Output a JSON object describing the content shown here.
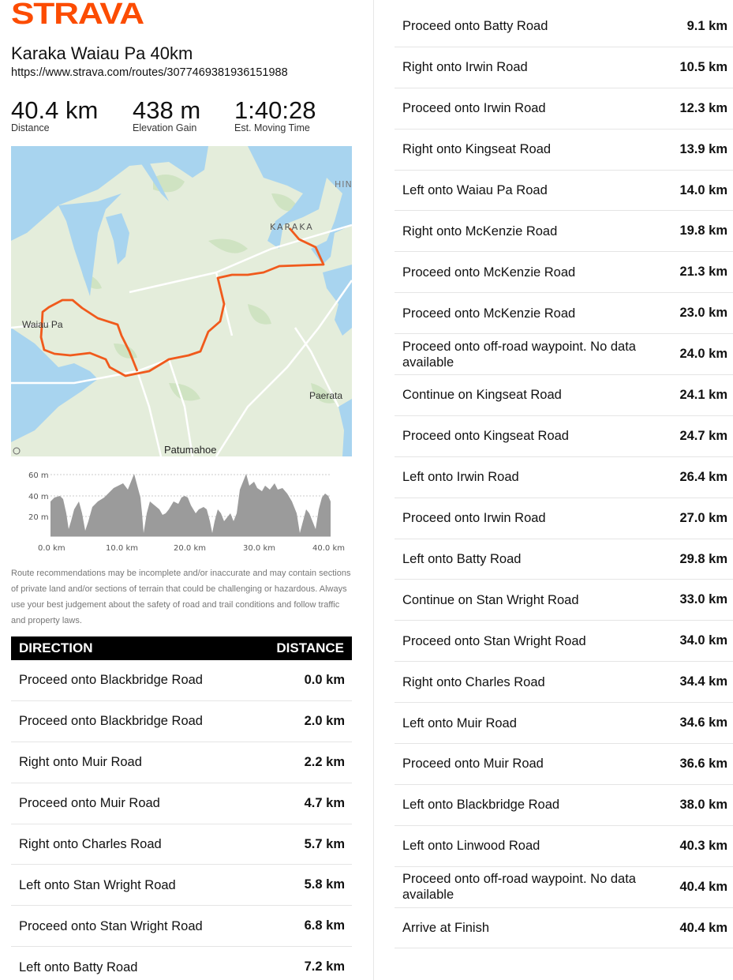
{
  "brand": "STRAVA",
  "route": {
    "title": "Karaka Waiau Pa 40km",
    "url": "https://www.strava.com/routes/3077469381936151988"
  },
  "stats": [
    {
      "value": "40.4 km",
      "label": "Distance"
    },
    {
      "value": "438 m",
      "label": "Elevation Gain"
    },
    {
      "value": "1:40:28",
      "label": "Est. Moving Time"
    }
  ],
  "map": {
    "labels": {
      "karaka": "KARAKA",
      "waiau": "Waiau Pa",
      "paerata": "Paerata",
      "patumahoe": "Patumahoe",
      "hin": "HIN"
    },
    "colors": {
      "water": "#a8d4ef",
      "land": "#e4eddb",
      "route": "#f05a1c"
    }
  },
  "elevation": {
    "y_ticks": [
      "60 m",
      "40 m",
      "20 m"
    ],
    "x_ticks": [
      "0.0 km",
      "10.0 km",
      "20.0 km",
      "30.0 km",
      "40.0 km"
    ]
  },
  "disclaimer": "Route recommendations may be incomplete and/or inaccurate and may contain sections of private land and/or sections of terrain that could be challenging or hazardous. Always use your best judgement about the safety of road and trail conditions and follow traffic and property laws.",
  "table": {
    "direction_header": "DIRECTION",
    "distance_header": "DISTANCE"
  },
  "directions_left": [
    {
      "text": "Proceed onto Blackbridge Road",
      "dist": "0.0 km"
    },
    {
      "text": "Proceed onto Blackbridge Road",
      "dist": "2.0 km"
    },
    {
      "text": "Right onto Muir Road",
      "dist": "2.2 km"
    },
    {
      "text": "Proceed onto Muir Road",
      "dist": "4.7 km"
    },
    {
      "text": "Right onto Charles Road",
      "dist": "5.7 km"
    },
    {
      "text": "Left onto Stan Wright Road",
      "dist": "5.8 km"
    },
    {
      "text": "Proceed onto Stan Wright Road",
      "dist": "6.8 km"
    },
    {
      "text": "Left onto Batty Road",
      "dist": "7.2 km"
    }
  ],
  "directions_right": [
    {
      "text": "Proceed onto Batty Road",
      "dist": "9.1 km"
    },
    {
      "text": "Right onto Irwin Road",
      "dist": "10.5 km"
    },
    {
      "text": "Proceed onto Irwin Road",
      "dist": "12.3 km"
    },
    {
      "text": "Right onto Kingseat Road",
      "dist": "13.9 km"
    },
    {
      "text": "Left onto Waiau Pa Road",
      "dist": "14.0 km"
    },
    {
      "text": "Right onto McKenzie Road",
      "dist": "19.8 km"
    },
    {
      "text": "Proceed onto McKenzie Road",
      "dist": "21.3 km"
    },
    {
      "text": "Proceed onto McKenzie Road",
      "dist": "23.0 km"
    },
    {
      "text": "Proceed onto off-road waypoint. No data available",
      "dist": "24.0 km"
    },
    {
      "text": "Continue on Kingseat Road",
      "dist": "24.1 km"
    },
    {
      "text": "Proceed onto Kingseat Road",
      "dist": "24.7 km"
    },
    {
      "text": "Left onto Irwin Road",
      "dist": "26.4 km"
    },
    {
      "text": "Proceed onto Irwin Road",
      "dist": "27.0 km"
    },
    {
      "text": "Left onto Batty Road",
      "dist": "29.8 km"
    },
    {
      "text": "Continue on Stan Wright Road",
      "dist": "33.0 km"
    },
    {
      "text": "Proceed onto Stan Wright Road",
      "dist": "34.0 km"
    },
    {
      "text": "Right onto Charles Road",
      "dist": "34.4 km"
    },
    {
      "text": "Left onto Muir Road",
      "dist": "34.6 km"
    },
    {
      "text": "Proceed onto Muir Road",
      "dist": "36.6 km"
    },
    {
      "text": "Left onto Blackbridge Road",
      "dist": "38.0 km"
    },
    {
      "text": "Left onto Linwood Road",
      "dist": "40.3 km"
    },
    {
      "text": "Proceed onto off-road waypoint. No data available",
      "dist": "40.4 km"
    },
    {
      "text": " Arrive at Finish",
      "dist": "40.4 km"
    }
  ]
}
